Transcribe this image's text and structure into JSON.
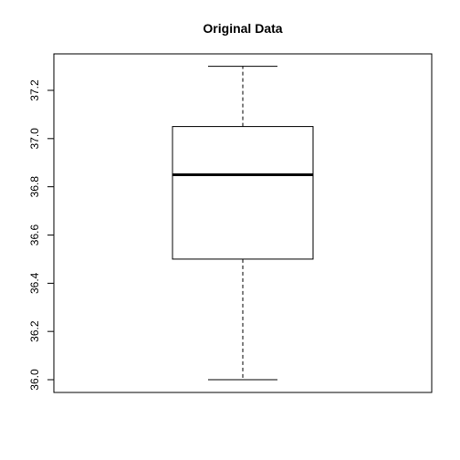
{
  "chart_data": {
    "type": "boxplot",
    "title": "Original Data",
    "xlabel": "",
    "ylabel": "",
    "ylim": [
      35.95,
      37.35
    ],
    "y_ticks": [
      36.0,
      36.2,
      36.4,
      36.6,
      36.8,
      37.0,
      37.2
    ],
    "y_tick_labels": [
      "36.0",
      "36.2",
      "36.4",
      "36.6",
      "36.8",
      "37.0",
      "37.2"
    ],
    "boxes": [
      {
        "min": 36.0,
        "q1": 36.5,
        "median": 36.85,
        "q3": 37.05,
        "max": 37.3
      }
    ],
    "grid": false,
    "legend": "none",
    "colors": {
      "box_stroke": "#000000",
      "median_stroke": "#000000",
      "background": "#ffffff"
    }
  }
}
